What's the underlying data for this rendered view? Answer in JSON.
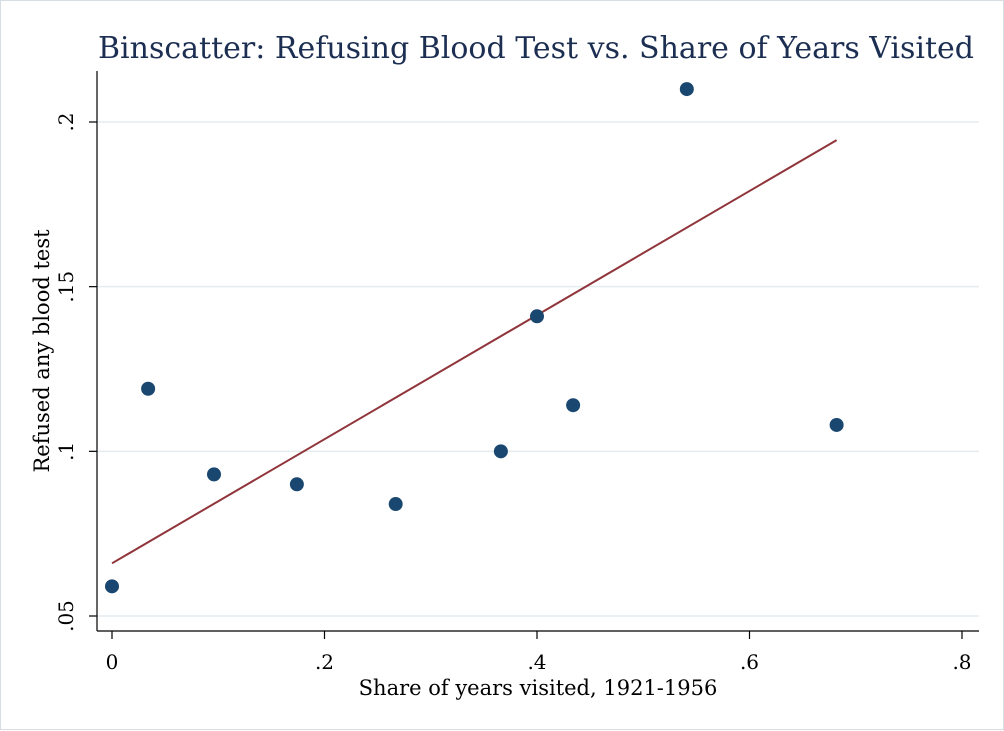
{
  "chart_data": {
    "type": "scatter",
    "title": "Binscatter: Refusing Blood Test vs. Share of Years Visited",
    "xlabel": "Share of years visited, 1921-1956",
    "ylabel": "Refused any blood test",
    "xlim": [
      0,
      0.8
    ],
    "ylim": [
      0.05,
      0.2
    ],
    "x_ticks": [
      0,
      0.2,
      0.4,
      0.6,
      0.8
    ],
    "x_tick_labels": [
      "0",
      ".2",
      ".4",
      ".6",
      ".8"
    ],
    "y_ticks": [
      0.05,
      0.1,
      0.15,
      0.2
    ],
    "y_tick_labels": [
      ".05",
      ".1",
      ".15",
      ".2"
    ],
    "grid": true,
    "legend": "none",
    "colors": {
      "points": "#1a476f",
      "fit_line": "#90353b",
      "grid": "#e4ecef",
      "title": "#1c2f52"
    },
    "points": [
      {
        "x": 0.0,
        "y": 0.059
      },
      {
        "x": 0.034,
        "y": 0.119
      },
      {
        "x": 0.096,
        "y": 0.093
      },
      {
        "x": 0.174,
        "y": 0.09
      },
      {
        "x": 0.267,
        "y": 0.084
      },
      {
        "x": 0.366,
        "y": 0.1
      },
      {
        "x": 0.4,
        "y": 0.141
      },
      {
        "x": 0.434,
        "y": 0.114
      },
      {
        "x": 0.541,
        "y": 0.21
      },
      {
        "x": 0.682,
        "y": 0.108
      }
    ],
    "fit_line": {
      "x": [
        0.0,
        0.682
      ],
      "y": [
        0.066,
        0.1945
      ]
    }
  }
}
